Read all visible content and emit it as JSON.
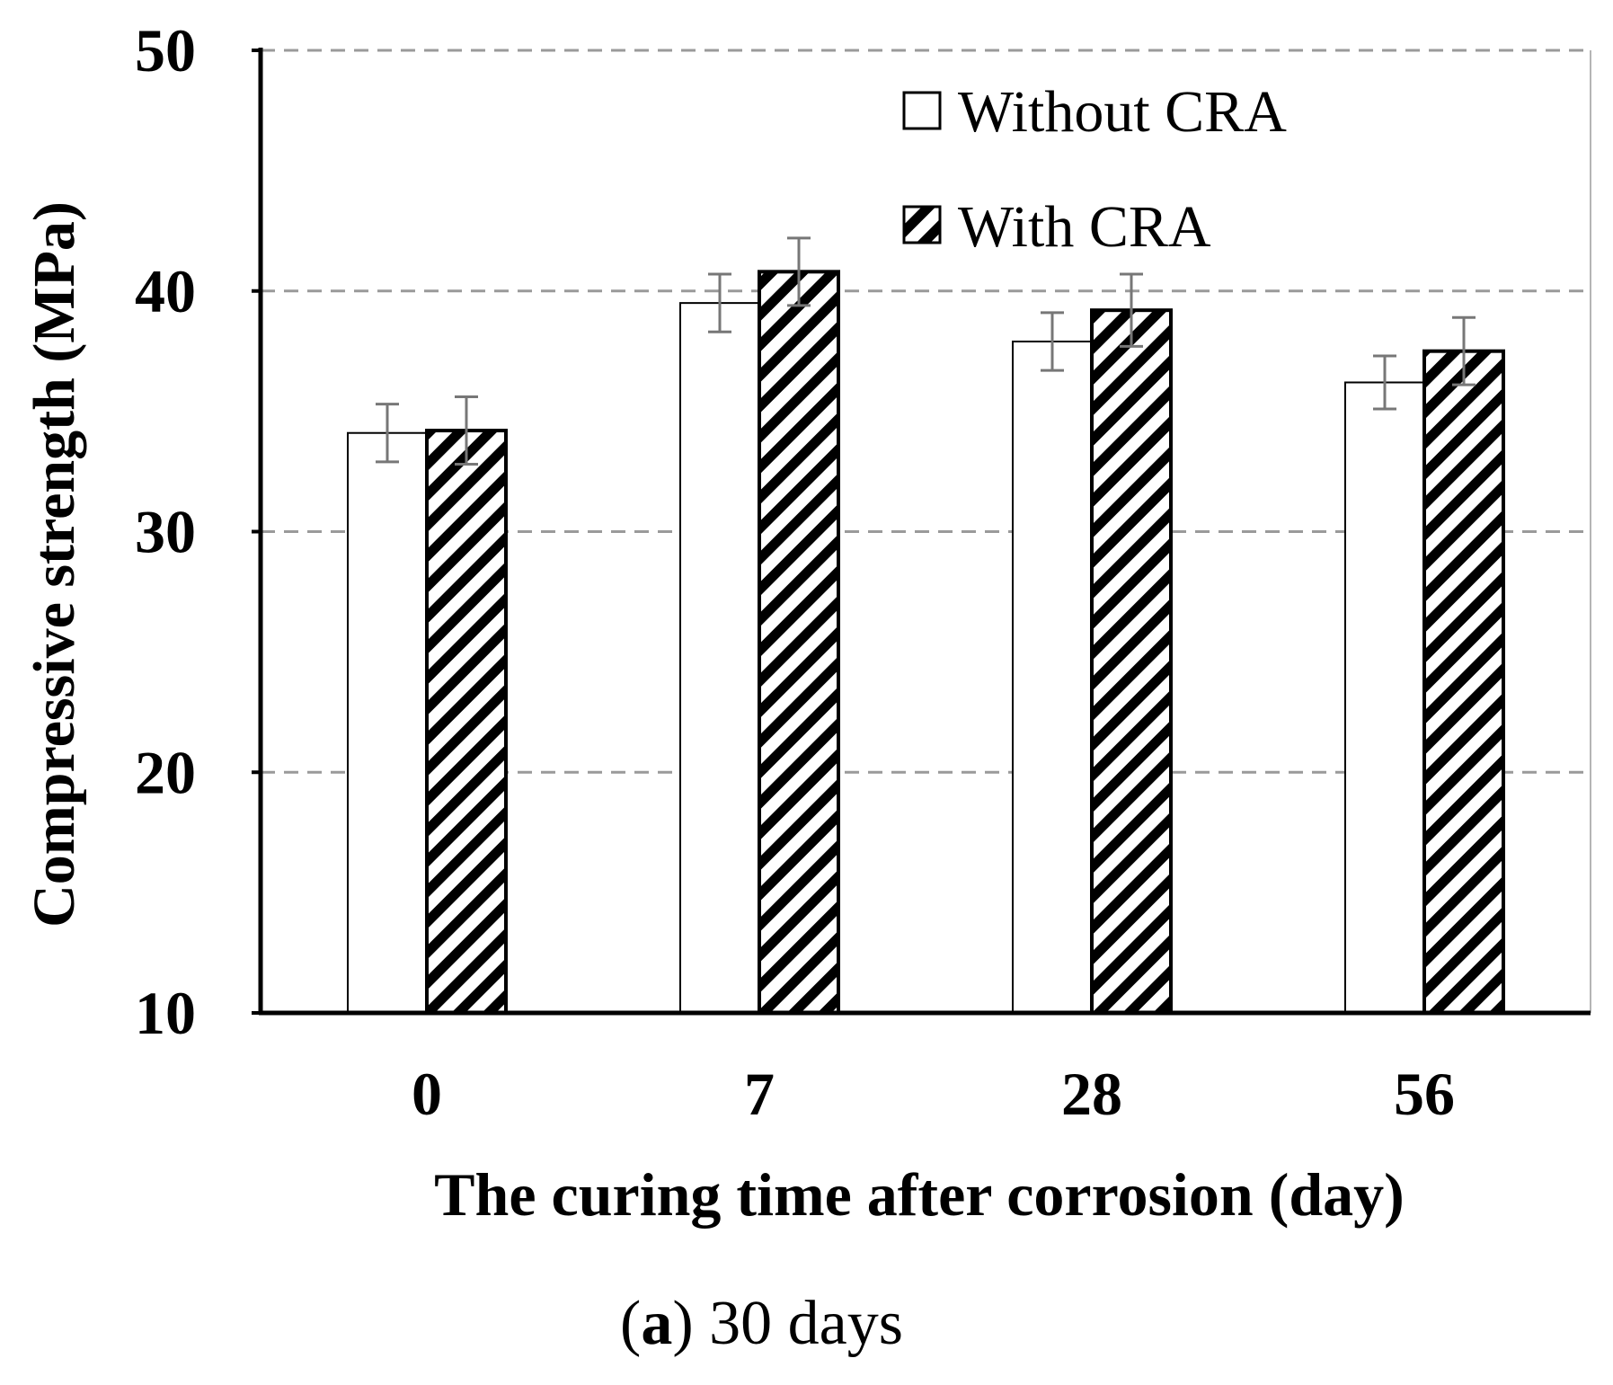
{
  "chart_data": {
    "type": "bar",
    "categories": [
      "0",
      "7",
      "28",
      "56"
    ],
    "series": [
      {
        "name": "Without CRA",
        "values": [
          34.1,
          39.5,
          37.9,
          36.2
        ],
        "error": [
          1.2,
          1.2,
          1.2,
          1.1
        ],
        "pattern": "solid-white"
      },
      {
        "name": "With CRA",
        "values": [
          34.2,
          40.8,
          39.2,
          37.5
        ],
        "error": [
          1.4,
          1.4,
          1.5,
          1.4
        ],
        "pattern": "diagonal-hatch"
      }
    ],
    "ylim": [
      10,
      50
    ],
    "yticks": [
      "10",
      "20",
      "30",
      "40",
      "50"
    ],
    "xlabel": "The curing time after corrosion (day)",
    "ylabel": "Compressive strength (MPa)",
    "grid": "dashed horizontal",
    "legend": "top-right"
  },
  "caption": {
    "letter": "a",
    "text": "30 days"
  }
}
